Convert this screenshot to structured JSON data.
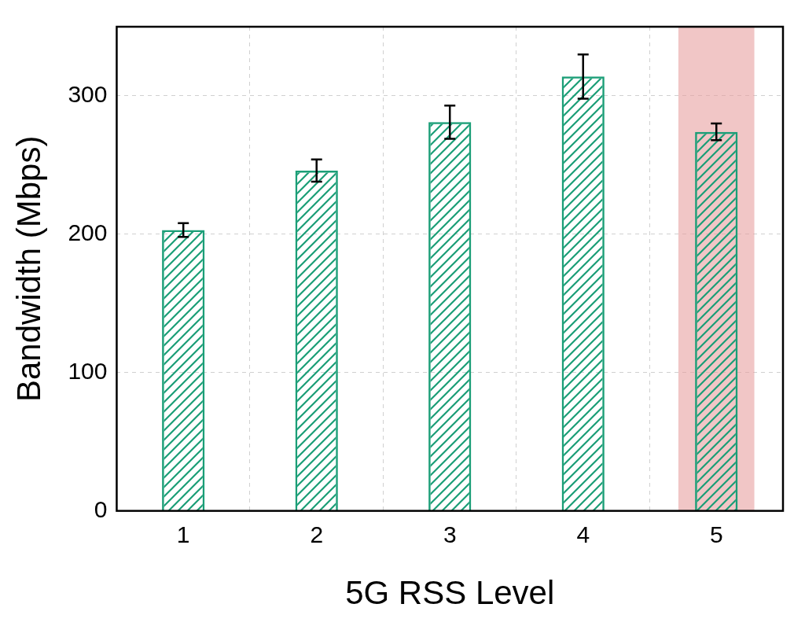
{
  "chart_data": {
    "type": "bar",
    "x_label": "5G RSS Level",
    "y_label": "Bandwidth (Mbps)",
    "categories": [
      "1",
      "2",
      "3",
      "4",
      "5"
    ],
    "values": [
      203,
      246,
      281,
      314,
      274
    ],
    "errors": [
      5,
      8,
      12,
      16,
      6
    ],
    "color": "#1b9e77",
    "ylim": [
      0,
      350
    ],
    "yticks": [
      0,
      100,
      200,
      300
    ],
    "grid": true
  }
}
